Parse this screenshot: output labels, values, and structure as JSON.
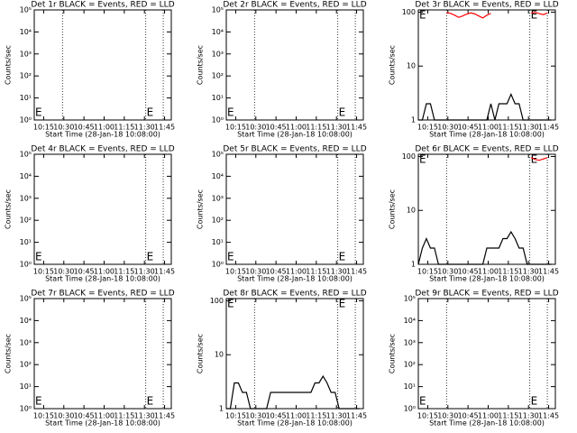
{
  "chart_data": [
    {
      "type": "line",
      "title": "Det 1r BLACK = Events, RED = LLD",
      "xlabel": "Start Time (28-Jan-18 10:08:00)",
      "ylabel": "Counts/sec",
      "log_y": true,
      "xlim": [
        8,
        110
      ],
      "xticks": [
        {
          "value": 15,
          "label": "10:15"
        },
        {
          "value": 30,
          "label": "10:30"
        },
        {
          "value": 45,
          "label": "10:45"
        },
        {
          "value": 60,
          "label": "11:00"
        },
        {
          "value": 75,
          "label": "11:15"
        },
        {
          "value": 90,
          "label": "11:30"
        },
        {
          "value": 105,
          "label": "11:45"
        }
      ],
      "ylim": [
        1,
        100000
      ],
      "yticks": [
        {
          "value": 1,
          "label": "10⁰"
        },
        {
          "value": 10,
          "label": "10¹"
        },
        {
          "value": 100,
          "label": "10²"
        },
        {
          "value": 1000,
          "label": "10³"
        },
        {
          "value": 10000,
          "label": "10⁴"
        },
        {
          "value": 100000,
          "label": "10⁵"
        }
      ],
      "vlines": [
        29,
        91,
        104
      ],
      "annotations": [
        {
          "text": "E",
          "x": 8,
          "position": "bottom"
        },
        {
          "text": "E",
          "x": 91,
          "position": "bottom"
        }
      ]
    },
    {
      "type": "line",
      "title": "Det 2r BLACK = Events, RED = LLD",
      "xlabel": "Start Time (28-Jan-18 10:08:00)",
      "ylabel": "Counts/sec",
      "log_y": true,
      "xlim": [
        8,
        110
      ],
      "xticks": [
        {
          "value": 15,
          "label": "10:15"
        },
        {
          "value": 30,
          "label": "10:30"
        },
        {
          "value": 45,
          "label": "10:45"
        },
        {
          "value": 60,
          "label": "11:00"
        },
        {
          "value": 75,
          "label": "11:15"
        },
        {
          "value": 90,
          "label": "11:30"
        },
        {
          "value": 105,
          "label": "11:45"
        }
      ],
      "ylim": [
        1,
        100000
      ],
      "yticks": [
        {
          "value": 1,
          "label": "10⁰"
        },
        {
          "value": 10,
          "label": "10¹"
        },
        {
          "value": 100,
          "label": "10²"
        },
        {
          "value": 1000,
          "label": "10³"
        },
        {
          "value": 10000,
          "label": "10⁴"
        },
        {
          "value": 100000,
          "label": "10⁵"
        }
      ],
      "vlines": [
        29,
        91,
        104
      ],
      "annotations": [
        {
          "text": "E",
          "x": 8,
          "position": "bottom"
        },
        {
          "text": "E",
          "x": 91,
          "position": "bottom"
        }
      ]
    },
    {
      "type": "line",
      "title": "Det 3r BLACK = Events, RED = LLD",
      "xlabel": "Start Time (28-Jan-18 10:08:00)",
      "ylabel": "Counts/sec",
      "log_y": true,
      "xlim": [
        8,
        110
      ],
      "xticks": [
        {
          "value": 15,
          "label": "10:15"
        },
        {
          "value": 30,
          "label": "10:30"
        },
        {
          "value": 45,
          "label": "10:45"
        },
        {
          "value": 60,
          "label": "11:00"
        },
        {
          "value": 75,
          "label": "11:15"
        },
        {
          "value": 90,
          "label": "11:30"
        },
        {
          "value": 105,
          "label": "11:45"
        }
      ],
      "ylim": [
        1,
        110
      ],
      "yticks": [
        1,
        10,
        100
      ],
      "vlines": [
        29,
        91,
        104
      ],
      "annotations": [
        {
          "text": "E",
          "x": 8,
          "position": "top"
        },
        {
          "text": "E",
          "x": 91,
          "position": "top"
        }
      ],
      "x": [
        8,
        11,
        14,
        17,
        20,
        23,
        26,
        29,
        32,
        35,
        38,
        41,
        44,
        47,
        50,
        53,
        56,
        59,
        62,
        65,
        68,
        71,
        74,
        77,
        80,
        83,
        86,
        89,
        92,
        95,
        98,
        101,
        104,
        107
      ],
      "series": [
        {
          "name": "Events",
          "color": "#000000",
          "values": [
            1,
            1,
            2,
            2,
            1,
            1,
            1,
            1,
            1,
            1,
            1,
            1,
            1,
            1,
            1,
            1,
            1,
            1,
            2,
            1,
            2,
            2,
            2,
            3,
            2,
            2,
            1,
            1,
            1,
            1,
            1,
            1,
            1,
            1
          ]
        },
        {
          "name": "LLD",
          "color": "#ff0000",
          "values": [
            null,
            null,
            null,
            null,
            null,
            null,
            null,
            98,
            95,
            88,
            80,
            85,
            92,
            97,
            93,
            85,
            78,
            88,
            95,
            null,
            null,
            null,
            null,
            null,
            null,
            null,
            null,
            null,
            96,
            99,
            94,
            90,
            96,
            null
          ]
        }
      ]
    },
    {
      "type": "line",
      "title": "Det 4r BLACK = Events, RED = LLD",
      "xlabel": "Start Time (28-Jan-18 10:08:00)",
      "ylabel": "Counts/sec",
      "log_y": true,
      "xlim": [
        8,
        110
      ],
      "xticks": [
        {
          "value": 15,
          "label": "10:15"
        },
        {
          "value": 30,
          "label": "10:30"
        },
        {
          "value": 45,
          "label": "10:45"
        },
        {
          "value": 60,
          "label": "11:00"
        },
        {
          "value": 75,
          "label": "11:15"
        },
        {
          "value": 90,
          "label": "11:30"
        },
        {
          "value": 105,
          "label": "11:45"
        }
      ],
      "ylim": [
        1,
        100000
      ],
      "yticks": [
        {
          "value": 1,
          "label": "10⁰"
        },
        {
          "value": 10,
          "label": "10¹"
        },
        {
          "value": 100,
          "label": "10²"
        },
        {
          "value": 1000,
          "label": "10³"
        },
        {
          "value": 10000,
          "label": "10⁴"
        },
        {
          "value": 100000,
          "label": "10⁵"
        }
      ],
      "vlines": [
        91,
        104
      ],
      "annotations": [
        {
          "text": "E",
          "x": 8,
          "position": "bottom"
        },
        {
          "text": "E",
          "x": 91,
          "position": "bottom"
        }
      ]
    },
    {
      "type": "line",
      "title": "Det 5r BLACK = Events, RED = LLD",
      "xlabel": "Start Time (28-Jan-18 10:08:00)",
      "ylabel": "Counts/sec",
      "log_y": true,
      "xlim": [
        8,
        110
      ],
      "xticks": [
        {
          "value": 15,
          "label": "10:15"
        },
        {
          "value": 30,
          "label": "10:30"
        },
        {
          "value": 45,
          "label": "10:45"
        },
        {
          "value": 60,
          "label": "11:00"
        },
        {
          "value": 75,
          "label": "11:15"
        },
        {
          "value": 90,
          "label": "11:30"
        },
        {
          "value": 105,
          "label": "11:45"
        }
      ],
      "ylim": [
        1,
        100000
      ],
      "yticks": [
        {
          "value": 1,
          "label": "10⁰"
        },
        {
          "value": 10,
          "label": "10¹"
        },
        {
          "value": 100,
          "label": "10²"
        },
        {
          "value": 1000,
          "label": "10³"
        },
        {
          "value": 10000,
          "label": "10⁴"
        },
        {
          "value": 100000,
          "label": "10⁵"
        }
      ],
      "vlines": [
        91,
        104
      ],
      "annotations": [
        {
          "text": "E",
          "x": 8,
          "position": "bottom"
        },
        {
          "text": "E",
          "x": 91,
          "position": "bottom"
        }
      ]
    },
    {
      "type": "line",
      "title": "Det 6r BLACK = Events, RED = LLD",
      "xlabel": "Start Time (28-Jan-18 10:08:00)",
      "ylabel": "Counts/sec",
      "log_y": true,
      "xlim": [
        8,
        110
      ],
      "xticks": [
        {
          "value": 15,
          "label": "10:15"
        },
        {
          "value": 30,
          "label": "10:30"
        },
        {
          "value": 45,
          "label": "10:45"
        },
        {
          "value": 60,
          "label": "11:00"
        },
        {
          "value": 75,
          "label": "11:15"
        },
        {
          "value": 90,
          "label": "11:30"
        },
        {
          "value": 105,
          "label": "11:45"
        }
      ],
      "ylim": [
        1,
        110
      ],
      "yticks": [
        1,
        10,
        100
      ],
      "vlines": [
        29,
        91,
        104
      ],
      "annotations": [
        {
          "text": "E",
          "x": 8,
          "position": "top"
        },
        {
          "text": "E",
          "x": 91,
          "position": "top"
        }
      ],
      "x": [
        8,
        11,
        14,
        17,
        20,
        23,
        26,
        29,
        32,
        35,
        38,
        41,
        44,
        47,
        50,
        53,
        56,
        59,
        62,
        65,
        68,
        71,
        74,
        77,
        80,
        83,
        86,
        89,
        92,
        95,
        98,
        101,
        104,
        107
      ],
      "series": [
        {
          "name": "Events",
          "color": "#000000",
          "values": [
            1,
            2,
            3,
            2,
            2,
            1,
            1,
            1,
            1,
            1,
            1,
            1,
            1,
            1,
            1,
            1,
            1,
            2,
            2,
            2,
            2,
            3,
            3,
            4,
            3,
            2,
            2,
            1,
            1,
            1,
            1,
            1,
            1,
            1
          ]
        },
        {
          "name": "LLD",
          "color": "#ff0000",
          "values": [
            null,
            null,
            null,
            null,
            null,
            null,
            null,
            null,
            null,
            null,
            null,
            null,
            null,
            null,
            null,
            null,
            null,
            null,
            null,
            null,
            null,
            null,
            null,
            null,
            null,
            null,
            null,
            null,
            95,
            88,
            85,
            90,
            95,
            null
          ]
        }
      ]
    },
    {
      "type": "line",
      "title": "Det 7r BLACK = Events, RED = LLD",
      "xlabel": "Start Time (28-Jan-18 10:08:00)",
      "ylabel": "Counts/sec",
      "log_y": true,
      "xlim": [
        8,
        110
      ],
      "xticks": [
        {
          "value": 15,
          "label": "10:15"
        },
        {
          "value": 30,
          "label": "10:30"
        },
        {
          "value": 45,
          "label": "10:45"
        },
        {
          "value": 60,
          "label": "11:00"
        },
        {
          "value": 75,
          "label": "11:15"
        },
        {
          "value": 90,
          "label": "11:30"
        },
        {
          "value": 105,
          "label": "11:45"
        }
      ],
      "ylim": [
        1,
        100000
      ],
      "yticks": [
        {
          "value": 1,
          "label": "10⁰"
        },
        {
          "value": 10,
          "label": "10¹"
        },
        {
          "value": 100,
          "label": "10²"
        },
        {
          "value": 1000,
          "label": "10³"
        },
        {
          "value": 10000,
          "label": "10⁴"
        },
        {
          "value": 100000,
          "label": "10⁵"
        }
      ],
      "vlines": [
        91,
        104
      ],
      "annotations": [
        {
          "text": "E",
          "x": 8,
          "position": "bottom"
        },
        {
          "text": "E",
          "x": 91,
          "position": "bottom"
        }
      ]
    },
    {
      "type": "line",
      "title": "Det 8r BLACK = Events, RED = LLD",
      "xlabel": "Start Time (28-Jan-18 10:08:00)",
      "ylabel": "Counts/sec",
      "log_y": true,
      "xlim": [
        8,
        110
      ],
      "xticks": [
        {
          "value": 15,
          "label": "10:15"
        },
        {
          "value": 30,
          "label": "10:30"
        },
        {
          "value": 45,
          "label": "10:45"
        },
        {
          "value": 60,
          "label": "11:00"
        },
        {
          "value": 75,
          "label": "11:15"
        },
        {
          "value": 90,
          "label": "11:30"
        },
        {
          "value": 105,
          "label": "11:45"
        }
      ],
      "ylim": [
        1,
        110
      ],
      "yticks": [
        1,
        10,
        100
      ],
      "vlines": [
        29,
        91,
        104
      ],
      "annotations": [
        {
          "text": "E",
          "x": 8,
          "position": "top"
        },
        {
          "text": "E",
          "x": 91,
          "position": "top"
        }
      ],
      "x": [
        8,
        11,
        14,
        17,
        20,
        23,
        26,
        29,
        32,
        35,
        38,
        41,
        44,
        47,
        50,
        53,
        56,
        59,
        62,
        65,
        68,
        71,
        74,
        77,
        80,
        83,
        86,
        89,
        92,
        95,
        98,
        101,
        104,
        107
      ],
      "series": [
        {
          "name": "Events",
          "color": "#000000",
          "values": [
            1,
            1,
            3,
            3,
            2,
            2,
            1,
            1,
            1,
            1,
            1,
            2,
            2,
            2,
            2,
            2,
            2,
            2,
            2,
            2,
            2,
            2,
            3,
            3,
            4,
            3,
            2,
            2,
            1,
            1,
            1,
            1,
            1,
            1
          ]
        }
      ]
    },
    {
      "type": "line",
      "title": "Det 9r BLACK = Events, RED = LLD",
      "xlabel": "Start Time (28-Jan-18 10:08:00)",
      "ylabel": "Counts/sec",
      "log_y": true,
      "xlim": [
        8,
        110
      ],
      "xticks": [
        {
          "value": 15,
          "label": "10:15"
        },
        {
          "value": 30,
          "label": "10:30"
        },
        {
          "value": 45,
          "label": "10:45"
        },
        {
          "value": 60,
          "label": "11:00"
        },
        {
          "value": 75,
          "label": "11:15"
        },
        {
          "value": 90,
          "label": "11:30"
        },
        {
          "value": 105,
          "label": "11:45"
        }
      ],
      "ylim": [
        1,
        100000
      ],
      "yticks": [
        {
          "value": 1,
          "label": "10⁰"
        },
        {
          "value": 10,
          "label": "10¹"
        },
        {
          "value": 100,
          "label": "10²"
        },
        {
          "value": 1000,
          "label": "10³"
        },
        {
          "value": 10000,
          "label": "10⁴"
        },
        {
          "value": 100000,
          "label": "10⁵"
        }
      ],
      "vlines": [
        29,
        91,
        104
      ],
      "annotations": [
        {
          "text": "E",
          "x": 8,
          "position": "bottom"
        },
        {
          "text": "E",
          "x": 91,
          "position": "bottom"
        }
      ]
    }
  ]
}
